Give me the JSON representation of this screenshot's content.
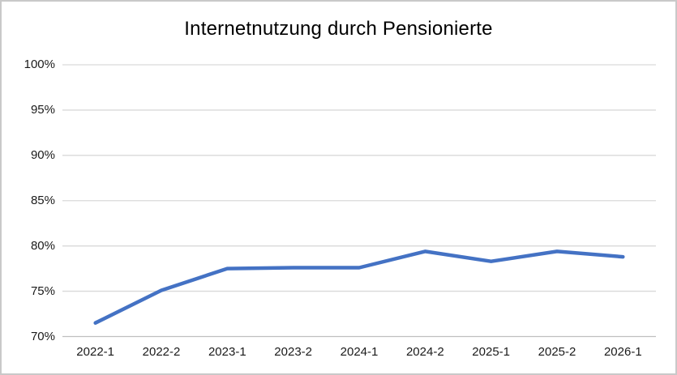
{
  "chart": {
    "colors": {
      "line": "#4472C4",
      "gridline": "#D9D9D9",
      "axis_line": "#BFBFBF",
      "label": "#1a1a1a",
      "title": "#000000",
      "frame_border": "#C9C9C9",
      "background": "#FFFFFF"
    }
  },
  "chart_data": {
    "type": "line",
    "title": "Internetnutzung durch Pensionierte",
    "categories": [
      "2022-1",
      "2022-2",
      "2023-1",
      "2023-2",
      "2024-1",
      "2024-2",
      "2025-1",
      "2025-2",
      "2026-1"
    ],
    "series": [
      {
        "name": "Internetnutzung durch Pensionierte",
        "values": [
          71.5,
          75.1,
          77.5,
          77.6,
          77.6,
          79.4,
          78.3,
          79.4,
          78.8
        ]
      }
    ],
    "xlabel": "",
    "ylabel": "",
    "ylim": [
      70,
      100
    ],
    "ytick_step": 5,
    "ytick_labels": [
      "70%",
      "75%",
      "80%",
      "85%",
      "90%",
      "95%",
      "100%"
    ],
    "grid": true,
    "legend_position": "none",
    "unit": "%"
  }
}
